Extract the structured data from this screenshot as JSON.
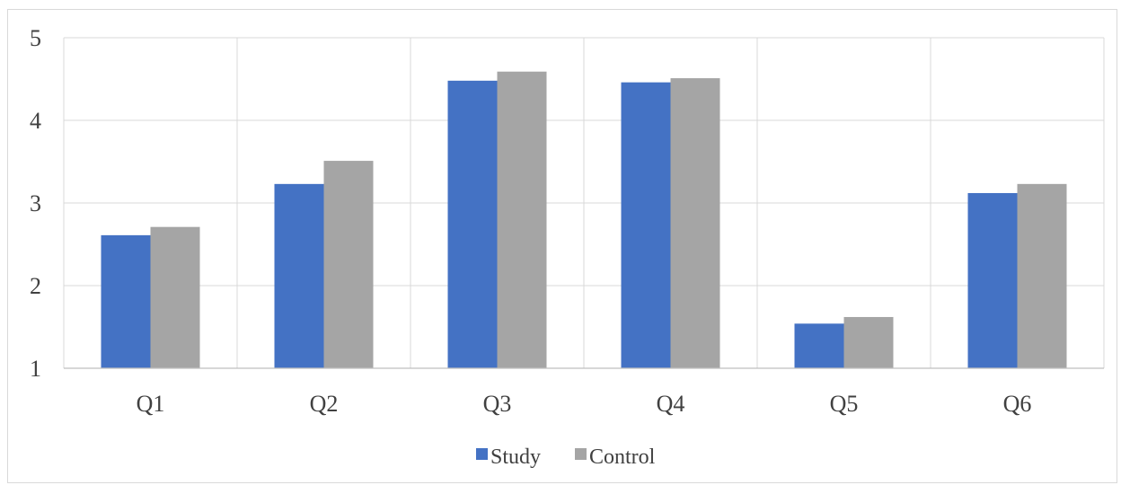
{
  "chart_data": {
    "type": "bar",
    "categories": [
      "Q1",
      "Q2",
      "Q3",
      "Q4",
      "Q5",
      "Q6"
    ],
    "series": [
      {
        "name": "Study",
        "values": [
          2.61,
          3.23,
          4.48,
          4.46,
          1.54,
          3.12
        ],
        "color": "#4472c4"
      },
      {
        "name": "Control",
        "values": [
          2.71,
          3.51,
          4.59,
          4.51,
          1.62,
          3.23
        ],
        "color": "#a5a5a5"
      }
    ],
    "title": "",
    "xlabel": "",
    "ylabel": "",
    "ylim": [
      1,
      5
    ],
    "yticks": [
      "1",
      "2",
      "3",
      "4",
      "5"
    ],
    "grid": true,
    "gridline_color": "#d9d9d9",
    "legend_position": "bottom"
  }
}
